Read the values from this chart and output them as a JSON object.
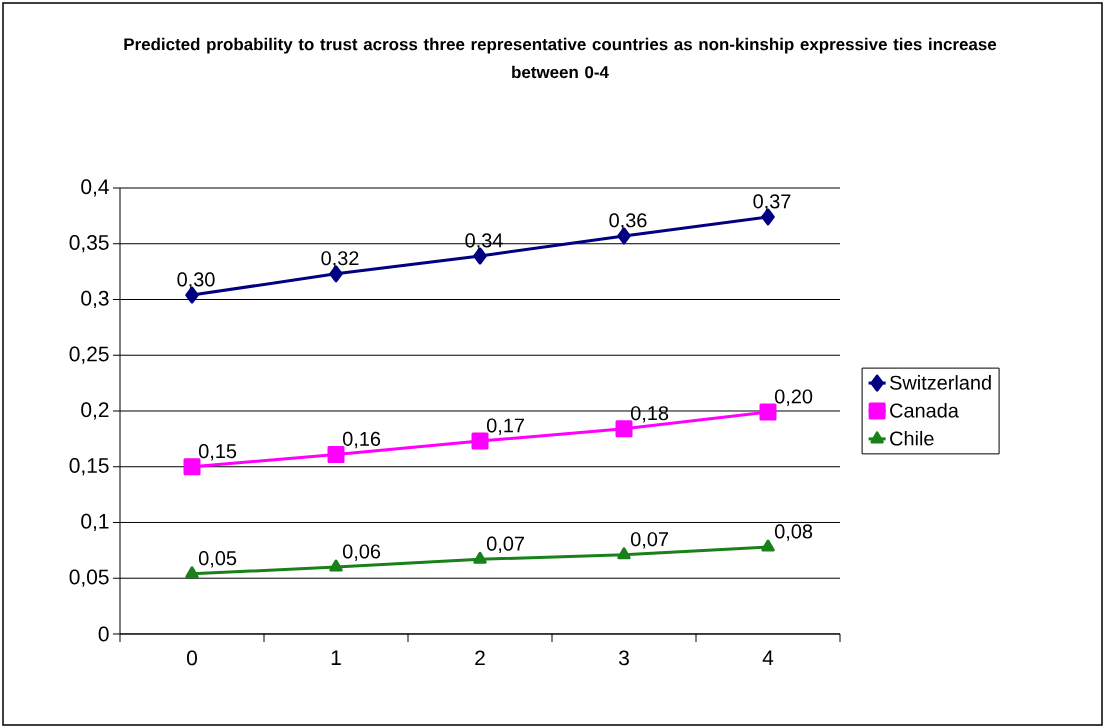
{
  "chart_data": {
    "type": "line",
    "title": "Predicted probability to trust across three representative countries as non-kinship expressive ties increase between 0-4",
    "categories": [
      "0",
      "1",
      "2",
      "3",
      "4"
    ],
    "series": [
      {
        "name": "Switzerland",
        "color": "#000080",
        "marker": "diamond",
        "values": [
          0.304,
          0.323,
          0.339,
          0.357,
          0.374
        ],
        "value_labels": [
          "0,30",
          "0,32",
          "0,34",
          "0,36",
          "0,37"
        ]
      },
      {
        "name": "Canada",
        "color": "#ff00ff",
        "marker": "square",
        "values": [
          0.15,
          0.161,
          0.173,
          0.184,
          0.199
        ],
        "value_labels": [
          "0,15",
          "0,16",
          "0,17",
          "0,18",
          "0,20"
        ]
      },
      {
        "name": "Chile",
        "color": "#1a801a",
        "marker": "triangle",
        "values": [
          0.054,
          0.06,
          0.067,
          0.071,
          0.078
        ],
        "value_labels": [
          "0,05",
          "0,06",
          "0,07",
          "0,07",
          "0,08"
        ]
      }
    ],
    "ylim": [
      0,
      0.4
    ],
    "yticks": [
      0,
      {
        "value": 0.05,
        "label": "0,05"
      },
      {
        "value": 0.1,
        "label": "0,1"
      },
      {
        "value": 0.15,
        "label": "0,15"
      },
      {
        "value": 0.2,
        "label": "0,2"
      },
      {
        "value": 0.25,
        "label": "0,25"
      },
      {
        "value": 0.3,
        "label": "0,3"
      },
      {
        "value": 0.35,
        "label": "0,35"
      },
      {
        "value": 0.4,
        "label": "0,4"
      }
    ],
    "grid": "y",
    "legend": "right",
    "line_style": "solid"
  }
}
